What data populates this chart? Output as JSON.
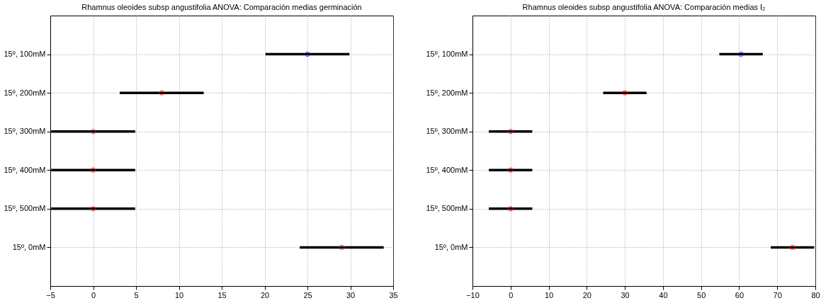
{
  "chart_data": [
    {
      "type": "scatter",
      "orientation": "horizontal",
      "title": "Rhamnus oleoides subsp angustifolia ANOVA: Comparación medias germinación",
      "categories": [
        "15º, 100mM",
        "15º, 200mM",
        "15º, 300mM",
        "15º, 400mM",
        "15º, 500mM",
        "15º,  0mM"
      ],
      "values": [
        25,
        8,
        0,
        0,
        0,
        29
      ],
      "errors": [
        4.9,
        4.9,
        4.9,
        4.9,
        4.9,
        4.9
      ],
      "colors": [
        "#0000ff",
        "#ff0000",
        "#ff0000",
        "#ff0000",
        "#ff0000",
        "#ff0000"
      ],
      "xlim": [
        -5,
        35
      ],
      "xticks": [
        -5,
        0,
        5,
        10,
        15,
        20,
        25,
        30,
        35
      ],
      "grid": true,
      "marker": "circle"
    },
    {
      "type": "scatter",
      "orientation": "horizontal",
      "title": "Rhamnus oleoides subsp angustifolia ANOVA: Comparación medias I₂",
      "categories": [
        "15º, 100mM",
        "15º, 200mM",
        "15º, 300mM",
        "15º, 400mM",
        "15º, 500mM",
        "15º,  0mM"
      ],
      "values": [
        60.5,
        30,
        0,
        0,
        0,
        74
      ],
      "errors": [
        5.7,
        5.7,
        5.7,
        5.7,
        5.7,
        5.7
      ],
      "colors": [
        "#0000ff",
        "#ff0000",
        "#ff0000",
        "#ff0000",
        "#ff0000",
        "#ff0000"
      ],
      "xlim": [
        -10,
        80
      ],
      "xticks": [
        -10,
        0,
        10,
        20,
        30,
        40,
        50,
        60,
        70,
        80
      ],
      "grid": true,
      "marker": "circle"
    }
  ]
}
